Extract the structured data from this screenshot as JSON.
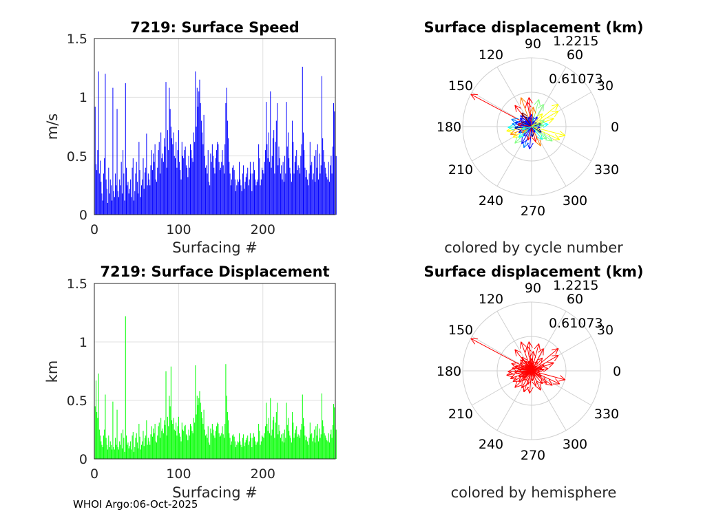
{
  "footer": "WHOI Argo:06-Oct-2025",
  "chart_data": [
    {
      "type": "bar",
      "title": "7219: Surface Speed",
      "xlabel": "Surfacing #",
      "ylabel": "m/s",
      "xlim": [
        0,
        286
      ],
      "ylim": [
        0,
        1.5
      ],
      "xticks": [
        "0",
        "100",
        "200"
      ],
      "yticks": [
        "0",
        "0.5",
        "1",
        "1.5"
      ],
      "color": "#0000ff",
      "grid": true,
      "values": [
        0.92,
        0.43,
        0.38,
        0.55,
        1.22,
        0.35,
        0.46,
        0.28,
        0.18,
        0.12,
        0.35,
        0.48,
        1.2,
        0.3,
        0.22,
        0.1,
        0.4,
        0.18,
        0.3,
        0.25,
        0.12,
        1.08,
        0.2,
        0.15,
        0.35,
        0.25,
        0.9,
        0.2,
        0.15,
        0.3,
        0.25,
        0.45,
        0.18,
        0.55,
        0.35,
        0.12,
        1.12,
        0.4,
        0.25,
        0.28,
        0.18,
        0.22,
        0.3,
        0.15,
        0.4,
        0.48,
        0.12,
        0.2,
        0.35,
        0.45,
        0.28,
        0.18,
        0.62,
        0.38,
        0.15,
        0.25,
        0.3,
        0.48,
        0.22,
        0.36,
        0.4,
        0.69,
        0.25,
        0.35,
        0.3,
        0.25,
        0.42,
        0.55,
        0.38,
        0.52,
        0.45,
        0.6,
        0.3,
        0.28,
        0.4,
        0.55,
        0.62,
        0.35,
        0.7,
        0.48,
        0.52,
        0.45,
        0.65,
        0.58,
        1.13,
        0.4,
        0.72,
        0.55,
        1.08,
        0.9,
        0.75,
        0.65,
        0.6,
        0.7,
        0.5,
        0.48,
        0.62,
        0.4,
        0.55,
        0.72,
        0.45,
        0.38,
        0.3,
        0.62,
        0.5,
        0.48,
        0.55,
        0.58,
        0.42,
        0.4,
        0.32,
        0.5,
        0.4,
        0.6,
        0.55,
        0.48,
        0.45,
        0.7,
        0.62,
        1.22,
        0.75,
        1.08,
        0.92,
        1.05,
        1.15,
        0.95,
        0.8,
        0.7,
        0.6,
        0.85,
        0.5,
        0.4,
        0.42,
        0.35,
        0.55,
        0.28,
        0.25,
        0.52,
        0.45,
        0.6,
        0.5,
        0.4,
        0.35,
        0.48,
        0.55,
        0.62,
        0.6,
        0.45,
        0.38,
        0.4,
        0.45,
        0.55,
        0.42,
        0.35,
        0.6,
        0.95,
        1.08,
        0.8,
        0.65,
        0.45,
        0.35,
        0.25,
        0.3,
        0.4,
        0.42,
        0.38,
        0.3,
        0.2,
        0.25,
        0.3,
        0.28,
        0.45,
        0.3,
        0.25,
        0.2,
        0.35,
        0.42,
        0.22,
        0.28,
        0.32,
        0.35,
        0.4,
        0.25,
        0.3,
        0.45,
        0.35,
        0.2,
        0.35,
        0.45,
        0.38,
        0.3,
        0.25,
        0.28,
        0.3,
        0.6,
        0.48,
        0.25,
        0.3,
        0.4,
        0.38,
        0.35,
        0.45,
        0.55,
        0.96,
        0.6,
        0.48,
        0.7,
        0.45,
        1.05,
        0.4,
        0.5,
        0.65,
        0.72,
        0.35,
        0.62,
        0.8,
        0.95,
        0.42,
        0.58,
        0.48,
        0.35,
        0.42,
        0.3,
        0.45,
        0.28,
        0.5,
        0.35,
        0.96,
        0.58,
        0.7,
        0.48,
        0.4,
        0.35,
        0.28,
        0.8,
        0.62,
        0.35,
        0.45,
        0.5,
        0.55,
        0.38,
        0.42,
        0.4,
        0.35,
        0.5,
        0.6,
        1.26,
        0.7,
        0.55,
        0.4,
        0.32,
        0.38,
        0.3,
        0.25,
        0.35,
        0.62,
        0.42,
        0.45,
        0.3,
        0.35,
        0.5,
        0.28,
        0.55,
        0.4,
        0.6,
        0.3,
        0.52,
        0.35,
        0.42,
        1.18,
        0.65,
        0.55,
        0.45,
        0.4,
        0.35,
        0.32,
        0.3,
        0.45,
        0.28,
        0.42,
        0.5,
        0.35,
        0.58,
        0.95,
        0.88,
        0.35,
        0.5
      ]
    },
    {
      "type": "bar",
      "title": "7219: Surface Displacement",
      "xlabel": "Surfacing #",
      "ylabel": "km",
      "xlim": [
        0,
        286
      ],
      "ylim": [
        0,
        1.5
      ],
      "xticks": [
        "0",
        "100",
        "200"
      ],
      "yticks": [
        "0",
        "0.5",
        "1",
        "1.5"
      ],
      "color": "#00ff00",
      "grid": true,
      "values": [
        0.45,
        0.67,
        0.4,
        0.35,
        0.73,
        0.25,
        0.2,
        0.15,
        0.12,
        0.1,
        0.2,
        0.25,
        0.55,
        0.18,
        0.12,
        0.08,
        0.2,
        0.1,
        0.15,
        0.12,
        0.08,
        0.49,
        0.1,
        0.08,
        0.18,
        0.12,
        0.42,
        0.1,
        0.08,
        0.15,
        0.12,
        0.22,
        0.09,
        0.25,
        0.18,
        0.06,
        1.22,
        0.2,
        0.12,
        0.14,
        0.09,
        0.11,
        0.15,
        0.08,
        0.2,
        0.23,
        0.06,
        0.1,
        0.18,
        0.22,
        0.14,
        0.09,
        0.3,
        0.19,
        0.08,
        0.12,
        0.15,
        0.24,
        0.11,
        0.18,
        0.2,
        0.33,
        0.12,
        0.18,
        0.15,
        0.12,
        0.21,
        0.28,
        0.19,
        0.26,
        0.22,
        0.3,
        0.15,
        0.14,
        0.2,
        0.28,
        0.31,
        0.18,
        0.35,
        0.24,
        0.26,
        0.22,
        0.33,
        0.29,
        0.75,
        0.2,
        0.36,
        0.28,
        0.54,
        0.45,
        0.79,
        0.33,
        0.3,
        0.35,
        0.25,
        0.24,
        0.31,
        0.2,
        0.28,
        0.36,
        0.22,
        0.19,
        0.15,
        0.31,
        0.25,
        0.24,
        0.28,
        0.29,
        0.21,
        0.2,
        0.16,
        0.25,
        0.2,
        0.3,
        0.28,
        0.24,
        0.22,
        0.35,
        0.31,
        0.8,
        0.38,
        0.54,
        0.46,
        0.52,
        0.58,
        0.48,
        0.4,
        0.35,
        0.3,
        0.42,
        0.25,
        0.2,
        0.21,
        0.18,
        0.28,
        0.14,
        0.12,
        0.26,
        0.22,
        0.3,
        0.25,
        0.2,
        0.18,
        0.24,
        0.28,
        0.31,
        0.3,
        0.22,
        0.19,
        0.2,
        0.22,
        0.28,
        0.21,
        0.18,
        0.3,
        0.81,
        0.54,
        0.4,
        0.33,
        0.22,
        0.18,
        0.12,
        0.15,
        0.2,
        0.21,
        0.19,
        0.15,
        0.1,
        0.12,
        0.15,
        0.14,
        0.22,
        0.15,
        0.12,
        0.1,
        0.18,
        0.21,
        0.11,
        0.14,
        0.16,
        0.18,
        0.2,
        0.12,
        0.15,
        0.22,
        0.18,
        0.1,
        0.18,
        0.22,
        0.19,
        0.15,
        0.12,
        0.14,
        0.15,
        0.3,
        0.24,
        0.12,
        0.15,
        0.2,
        0.19,
        0.18,
        0.22,
        0.28,
        0.48,
        0.3,
        0.24,
        0.35,
        0.22,
        0.52,
        0.2,
        0.25,
        0.33,
        0.36,
        0.18,
        0.31,
        0.4,
        0.48,
        0.21,
        0.29,
        0.24,
        0.18,
        0.21,
        0.15,
        0.22,
        0.14,
        0.25,
        0.18,
        0.48,
        0.29,
        0.35,
        0.24,
        0.2,
        0.18,
        0.14,
        0.4,
        0.31,
        0.18,
        0.22,
        0.25,
        0.28,
        0.19,
        0.21,
        0.2,
        0.18,
        0.25,
        0.3,
        0.55,
        0.35,
        0.28,
        0.2,
        0.16,
        0.19,
        0.15,
        0.12,
        0.18,
        0.31,
        0.21,
        0.22,
        0.15,
        0.18,
        0.25,
        0.14,
        0.28,
        0.2,
        0.3,
        0.15,
        0.26,
        0.18,
        0.21,
        0.56,
        0.33,
        0.28,
        0.22,
        0.2,
        0.18,
        0.16,
        0.15,
        0.22,
        0.14,
        0.21,
        0.25,
        0.18,
        0.29,
        0.47,
        0.44,
        0.18,
        0.25
      ]
    },
    {
      "type": "polar",
      "title": "Surface displacement (km)",
      "xlabel": "colored by cycle number",
      "rmax": 1.2215,
      "rticks": [
        "0.61073",
        "1.2215"
      ],
      "angle_ticks": [
        "0",
        "30",
        "60",
        "90",
        "120",
        "150",
        "180",
        "210",
        "240",
        "270",
        "300",
        "330"
      ],
      "colormap": [
        "#00008f",
        "#0000ff",
        "#0080ff",
        "#00ffff",
        "#80ff80",
        "#ffff00",
        "#ff8000",
        "#ff0000",
        "#800000"
      ],
      "vectors": [
        {
          "angle": 152,
          "r": 1.22,
          "cycle": 0.85
        },
        {
          "angle": 128,
          "r": 0.48,
          "cycle": 0.82
        },
        {
          "angle": 110,
          "r": 0.55,
          "cycle": 0.78
        },
        {
          "angle": 95,
          "r": 0.52,
          "cycle": 0.88
        },
        {
          "angle": 100,
          "r": 0.45,
          "cycle": 0.92
        },
        {
          "angle": 75,
          "r": 0.5,
          "cycle": 0.55
        },
        {
          "angle": 62,
          "r": 0.45,
          "cycle": 0.5
        },
        {
          "angle": 40,
          "r": 0.62,
          "cycle": 0.65
        },
        {
          "angle": 30,
          "r": 0.55,
          "cycle": 0.6
        },
        {
          "angle": 20,
          "r": 0.42,
          "cycle": 0.58
        },
        {
          "angle": 8,
          "r": 0.3,
          "cycle": 0.35
        },
        {
          "angle": 345,
          "r": 0.62,
          "cycle": 0.62
        },
        {
          "angle": 335,
          "r": 0.55,
          "cycle": 0.58
        },
        {
          "angle": 325,
          "r": 0.45,
          "cycle": 0.55
        },
        {
          "angle": 310,
          "r": 0.3,
          "cycle": 0.4
        },
        {
          "angle": 295,
          "r": 0.38,
          "cycle": 0.75
        },
        {
          "angle": 285,
          "r": 0.28,
          "cycle": 0.88
        },
        {
          "angle": 265,
          "r": 0.4,
          "cycle": 0.1
        },
        {
          "angle": 250,
          "r": 0.4,
          "cycle": 0.25
        },
        {
          "angle": 240,
          "r": 0.35,
          "cycle": 0.18
        },
        {
          "angle": 225,
          "r": 0.42,
          "cycle": 0.55
        },
        {
          "angle": 210,
          "r": 0.38,
          "cycle": 0.62
        },
        {
          "angle": 200,
          "r": 0.4,
          "cycle": 0.7
        },
        {
          "angle": 190,
          "r": 0.45,
          "cycle": 0.6
        },
        {
          "angle": 182,
          "r": 0.42,
          "cycle": 0.4
        },
        {
          "angle": 172,
          "r": 0.35,
          "cycle": 0.3
        },
        {
          "angle": 165,
          "r": 0.3,
          "cycle": 0.15
        },
        {
          "angle": 160,
          "r": 0.38,
          "cycle": 0.2
        },
        {
          "angle": 145,
          "r": 0.25,
          "cycle": 0.08
        },
        {
          "angle": 135,
          "r": 0.28,
          "cycle": 0.12
        },
        {
          "angle": 120,
          "r": 0.2,
          "cycle": 0.05
        },
        {
          "angle": 105,
          "r": 0.18,
          "cycle": 0.1
        },
        {
          "angle": 90,
          "r": 0.22,
          "cycle": 0.15
        },
        {
          "angle": 80,
          "r": 0.15,
          "cycle": 0.2
        },
        {
          "angle": 60,
          "r": 0.2,
          "cycle": 0.08
        },
        {
          "angle": 45,
          "r": 0.12,
          "cycle": 0.12
        },
        {
          "angle": 15,
          "r": 0.18,
          "cycle": 0.05
        },
        {
          "angle": 355,
          "r": 0.15,
          "cycle": 0.1
        },
        {
          "angle": 330,
          "r": 0.2,
          "cycle": 0.06
        },
        {
          "angle": 300,
          "r": 0.12,
          "cycle": 0.14
        },
        {
          "angle": 275,
          "r": 0.18,
          "cycle": 0.04
        },
        {
          "angle": 230,
          "r": 0.22,
          "cycle": 0.09
        },
        {
          "angle": 205,
          "r": 0.25,
          "cycle": 0.12
        },
        {
          "angle": 185,
          "r": 0.3,
          "cycle": 0.05
        },
        {
          "angle": 175,
          "r": 0.22,
          "cycle": 0.1
        },
        {
          "angle": 155,
          "r": 0.2,
          "cycle": 0.06
        },
        {
          "angle": 140,
          "r": 0.15,
          "cycle": 0.16
        },
        {
          "angle": 115,
          "r": 0.12,
          "cycle": 0.08
        },
        {
          "angle": 70,
          "r": 0.1,
          "cycle": 0.12
        },
        {
          "angle": 25,
          "r": 0.25,
          "cycle": 0.45
        },
        {
          "angle": 50,
          "r": 0.3,
          "cycle": 0.68
        },
        {
          "angle": 85,
          "r": 0.35,
          "cycle": 0.72
        },
        {
          "angle": 125,
          "r": 0.3,
          "cycle": 0.95
        },
        {
          "angle": 170,
          "r": 0.25,
          "cycle": 0.9
        },
        {
          "angle": 215,
          "r": 0.2,
          "cycle": 0.8
        },
        {
          "angle": 255,
          "r": 0.25,
          "cycle": 0.85
        },
        {
          "angle": 320,
          "r": 0.35,
          "cycle": 0.48
        },
        {
          "angle": 5,
          "r": 0.22,
          "cycle": 0.52
        },
        {
          "angle": 195,
          "r": 0.18,
          "cycle": 0.35
        },
        {
          "angle": 220,
          "r": 0.3,
          "cycle": 0.42
        }
      ]
    },
    {
      "type": "polar",
      "title": "Surface displacement (km)",
      "xlabel": "colored by hemisphere",
      "rmax": 1.2215,
      "rticks": [
        "0.61073",
        "1.2215"
      ],
      "angle_ticks": [
        "0",
        "30",
        "60",
        "90",
        "120",
        "150",
        "180",
        "210",
        "240",
        "270",
        "300",
        "330"
      ],
      "color": "#ff0000",
      "vectors": [
        {
          "angle": 152,
          "r": 1.22
        },
        {
          "angle": 128,
          "r": 0.48
        },
        {
          "angle": 110,
          "r": 0.55
        },
        {
          "angle": 95,
          "r": 0.52
        },
        {
          "angle": 100,
          "r": 0.45
        },
        {
          "angle": 75,
          "r": 0.5
        },
        {
          "angle": 62,
          "r": 0.45
        },
        {
          "angle": 40,
          "r": 0.62
        },
        {
          "angle": 30,
          "r": 0.55
        },
        {
          "angle": 20,
          "r": 0.42
        },
        {
          "angle": 8,
          "r": 0.3
        },
        {
          "angle": 345,
          "r": 0.62
        },
        {
          "angle": 335,
          "r": 0.55
        },
        {
          "angle": 325,
          "r": 0.45
        },
        {
          "angle": 310,
          "r": 0.3
        },
        {
          "angle": 295,
          "r": 0.38
        },
        {
          "angle": 285,
          "r": 0.28
        },
        {
          "angle": 265,
          "r": 0.4
        },
        {
          "angle": 250,
          "r": 0.4
        },
        {
          "angle": 240,
          "r": 0.35
        },
        {
          "angle": 225,
          "r": 0.42
        },
        {
          "angle": 210,
          "r": 0.38
        },
        {
          "angle": 200,
          "r": 0.4
        },
        {
          "angle": 190,
          "r": 0.45
        },
        {
          "angle": 182,
          "r": 0.42
        },
        {
          "angle": 172,
          "r": 0.35
        },
        {
          "angle": 165,
          "r": 0.3
        },
        {
          "angle": 160,
          "r": 0.38
        },
        {
          "angle": 145,
          "r": 0.25
        },
        {
          "angle": 135,
          "r": 0.28
        },
        {
          "angle": 120,
          "r": 0.2
        },
        {
          "angle": 105,
          "r": 0.18
        },
        {
          "angle": 90,
          "r": 0.22
        },
        {
          "angle": 80,
          "r": 0.15
        },
        {
          "angle": 60,
          "r": 0.2
        },
        {
          "angle": 45,
          "r": 0.12
        },
        {
          "angle": 15,
          "r": 0.18
        },
        {
          "angle": 355,
          "r": 0.15
        },
        {
          "angle": 330,
          "r": 0.2
        },
        {
          "angle": 300,
          "r": 0.12
        },
        {
          "angle": 275,
          "r": 0.18
        },
        {
          "angle": 230,
          "r": 0.22
        },
        {
          "angle": 205,
          "r": 0.25
        },
        {
          "angle": 185,
          "r": 0.3
        },
        {
          "angle": 175,
          "r": 0.22
        },
        {
          "angle": 155,
          "r": 0.2
        },
        {
          "angle": 140,
          "r": 0.15
        },
        {
          "angle": 115,
          "r": 0.12
        },
        {
          "angle": 70,
          "r": 0.1
        },
        {
          "angle": 25,
          "r": 0.25
        },
        {
          "angle": 50,
          "r": 0.3
        },
        {
          "angle": 85,
          "r": 0.35
        },
        {
          "angle": 125,
          "r": 0.3
        },
        {
          "angle": 170,
          "r": 0.25
        },
        {
          "angle": 215,
          "r": 0.2
        },
        {
          "angle": 255,
          "r": 0.25
        },
        {
          "angle": 320,
          "r": 0.35
        },
        {
          "angle": 5,
          "r": 0.22
        },
        {
          "angle": 195,
          "r": 0.18
        },
        {
          "angle": 220,
          "r": 0.3
        }
      ]
    }
  ]
}
